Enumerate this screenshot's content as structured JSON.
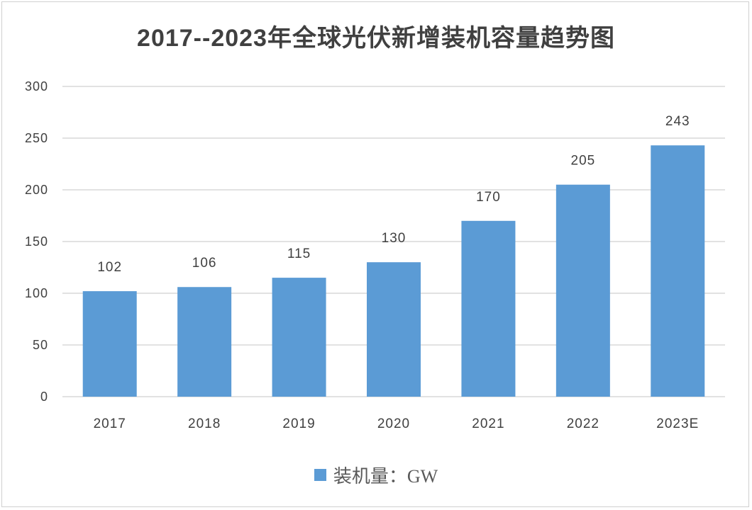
{
  "chart_data": {
    "type": "bar",
    "title": "2017--2023年全球光伏新增装机容量趋势图",
    "categories": [
      "2017",
      "2018",
      "2019",
      "2020",
      "2021",
      "2022",
      "2023E"
    ],
    "series": [
      {
        "name": "装机量：GW",
        "values": [
          102,
          106,
          115,
          130,
          170,
          205,
          243
        ]
      }
    ],
    "yticks": [
      0,
      50,
      100,
      150,
      200,
      250,
      300
    ],
    "ylim": [
      0,
      300
    ],
    "xlabel": "",
    "ylabel": "",
    "grid": true,
    "legend": "bottom-center",
    "color": "#5b9bd5"
  }
}
